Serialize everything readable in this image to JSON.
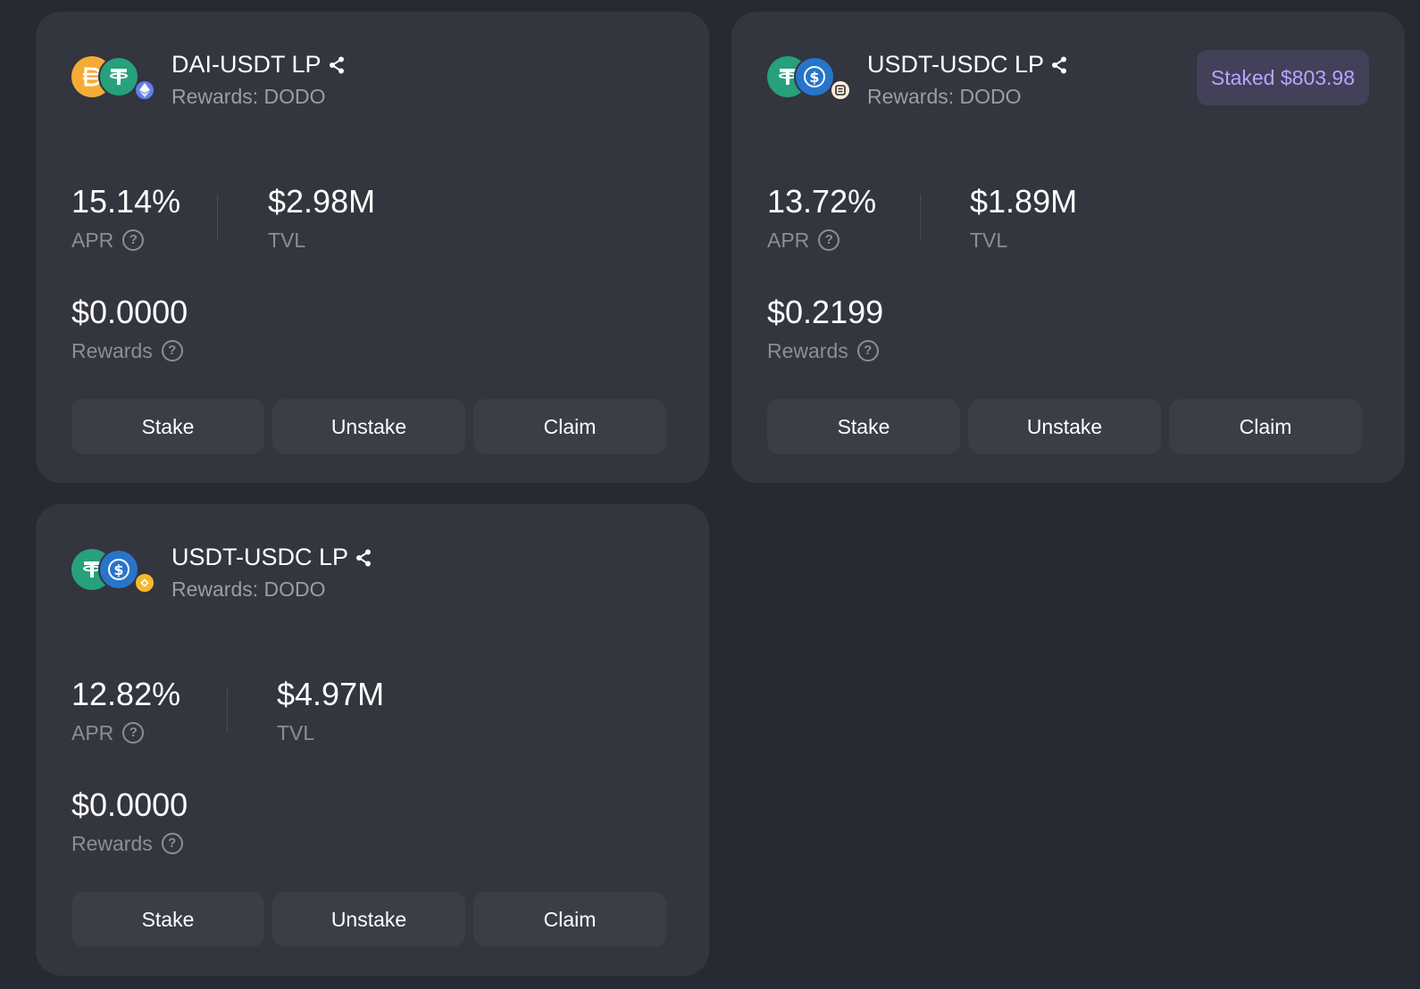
{
  "colors": {
    "background": "#282a33",
    "card": "#33353f",
    "button": "#3b3d47",
    "muted_text": "#8c8e97",
    "badge_bg": "#43405a",
    "badge_text": "#b8a6ff",
    "dai": "#f5ac37",
    "usdt": "#26a17b",
    "usdc": "#2775ca",
    "eth": "#627eea",
    "bnb": "#f3ba2f"
  },
  "cards": [
    {
      "title": "DAI-USDT LP",
      "rewards_label": "Rewards:",
      "rewards_token": "DODO",
      "badge": "",
      "tokens": [
        "dai-icon",
        "usdt-icon"
      ],
      "chain": "ethereum-icon",
      "apr": "15.14%",
      "apr_label": "APR",
      "tvl": "$2.98M",
      "tvl_label": "TVL",
      "reward_value": "$0.0000",
      "reward_label": "Rewards",
      "buttons": [
        "Stake",
        "Unstake",
        "Claim"
      ]
    },
    {
      "title": "USDT-USDC LP",
      "rewards_label": "Rewards:",
      "rewards_token": "DODO",
      "badge": "Staked $803.98",
      "tokens": [
        "usdt-icon",
        "usdc-icon"
      ],
      "chain": "scroll-icon",
      "apr": "13.72%",
      "apr_label": "APR",
      "tvl": "$1.89M",
      "tvl_label": "TVL",
      "reward_value": "$0.2199",
      "reward_label": "Rewards",
      "buttons": [
        "Stake",
        "Unstake",
        "Claim"
      ]
    },
    {
      "title": "USDT-USDC LP",
      "rewards_label": "Rewards:",
      "rewards_token": "DODO",
      "badge": "",
      "tokens": [
        "usdt-icon",
        "usdc-icon"
      ],
      "chain": "bnb-chain-icon",
      "apr": "12.82%",
      "apr_label": "APR",
      "tvl": "$4.97M",
      "tvl_label": "TVL",
      "reward_value": "$0.0000",
      "reward_label": "Rewards",
      "buttons": [
        "Stake",
        "Unstake",
        "Claim"
      ]
    }
  ]
}
